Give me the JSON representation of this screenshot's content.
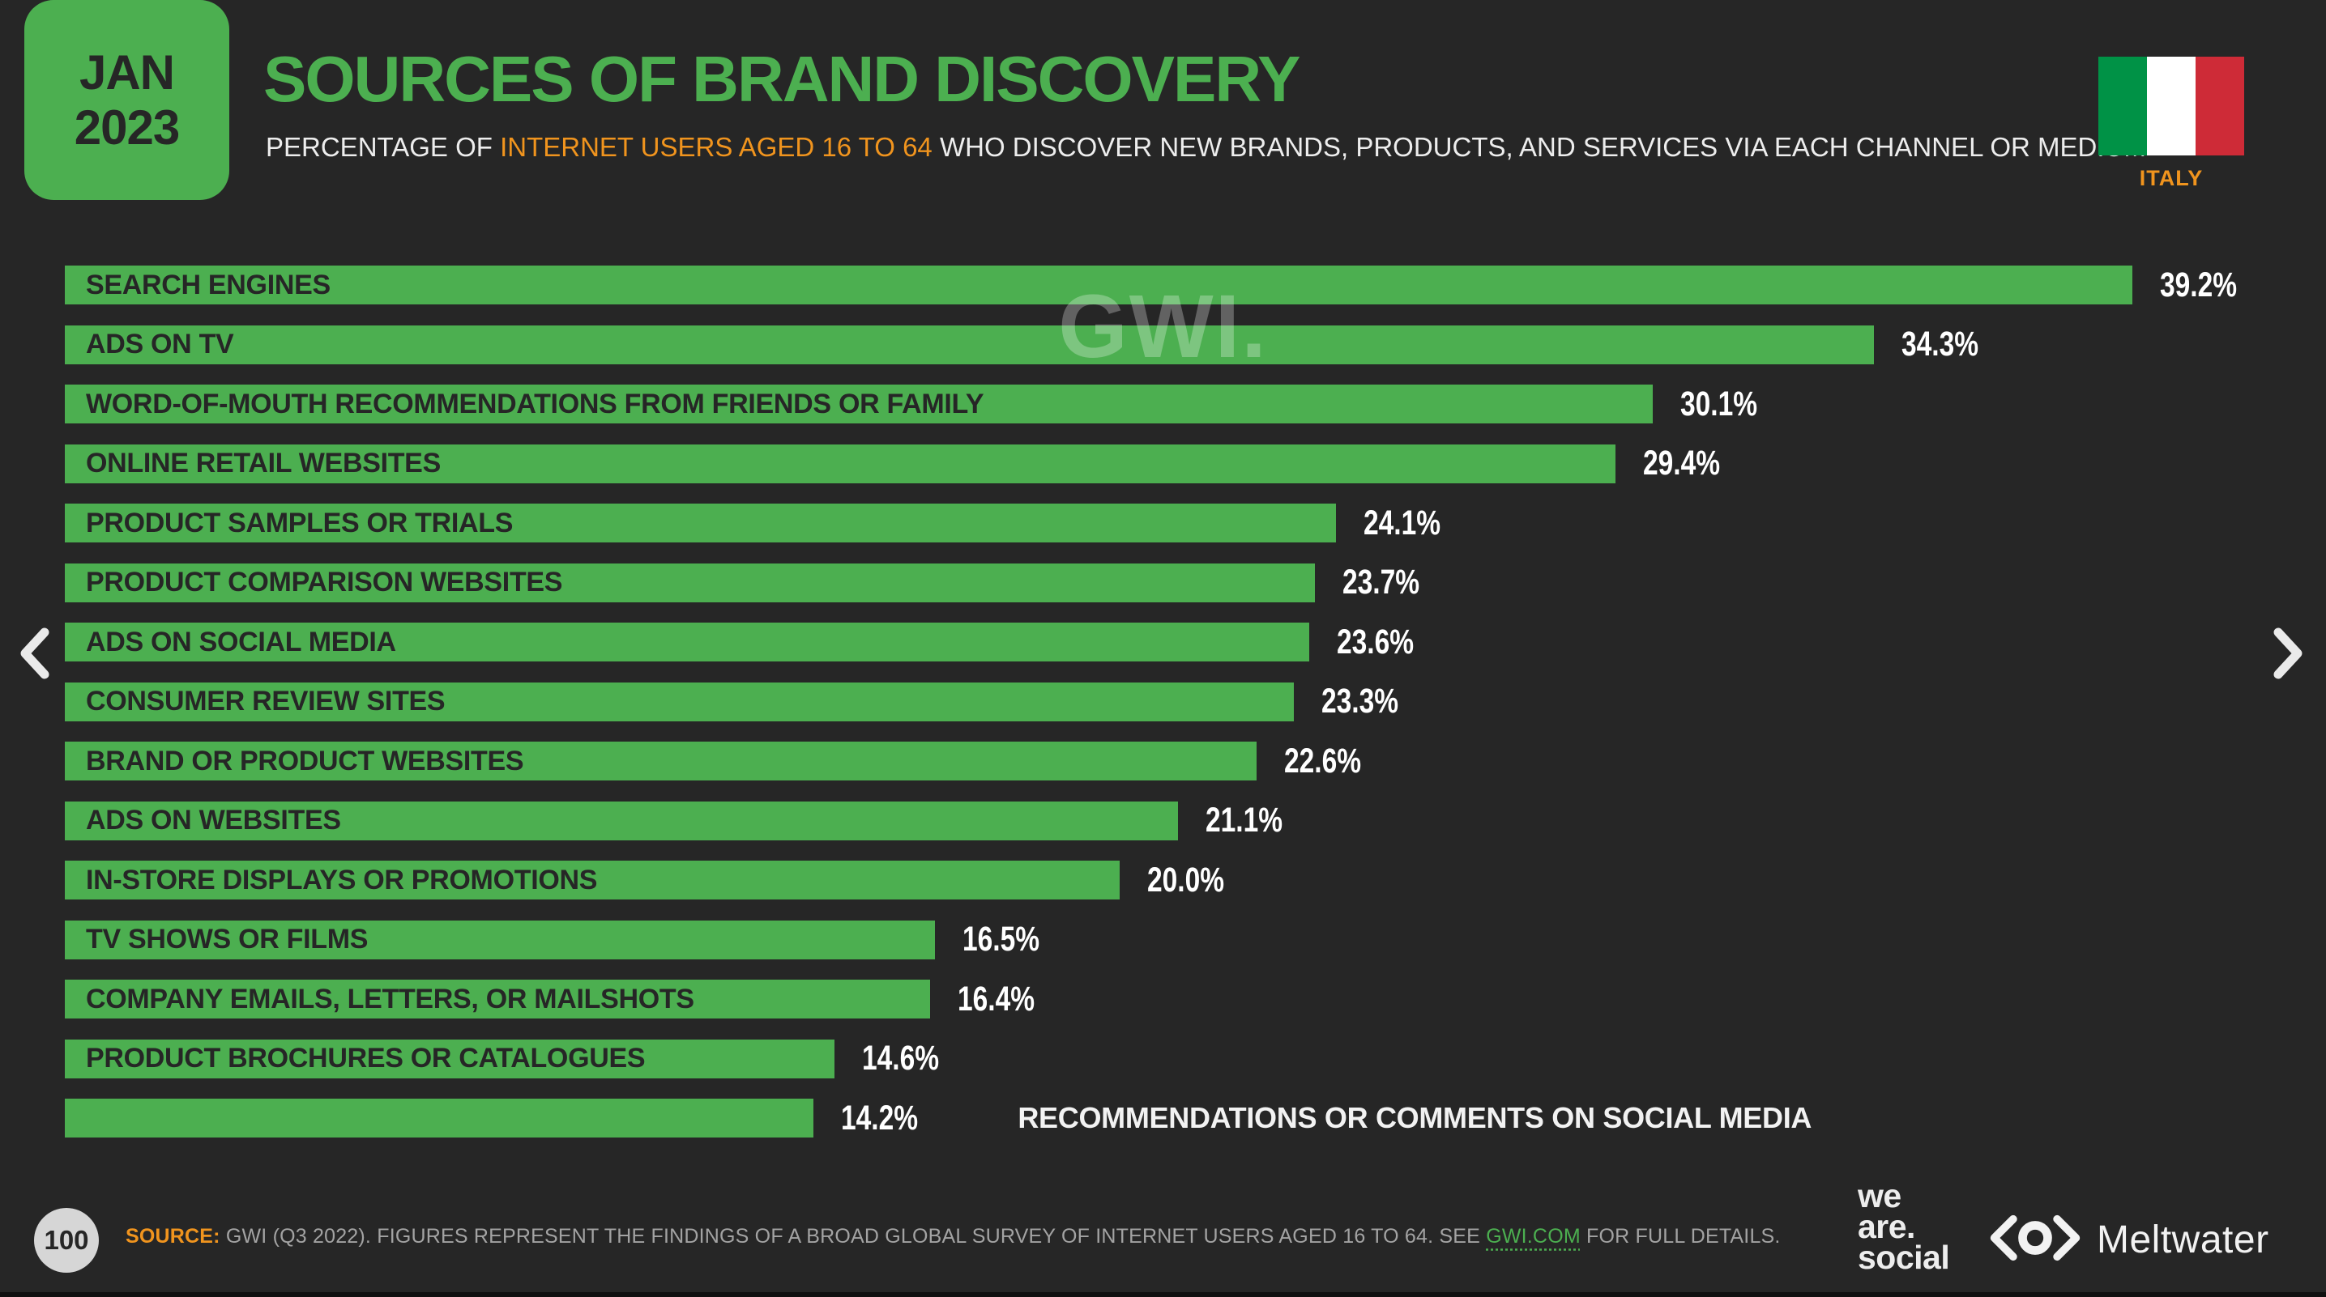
{
  "header": {
    "date_badge": {
      "month": "JAN",
      "year": "2023"
    },
    "title": "SOURCES OF BRAND DISCOVERY",
    "subtitle_prefix": "PERCENTAGE OF ",
    "subtitle_highlight": "INTERNET USERS AGED 16 TO 64",
    "subtitle_suffix": " WHO DISCOVER NEW BRANDS, PRODUCTS, AND SERVICES VIA EACH CHANNEL OR MEDIUM",
    "country_label": "ITALY"
  },
  "chart_data": {
    "type": "bar",
    "orientation": "horizontal",
    "unit": "%",
    "xlim": [
      0,
      40
    ],
    "grid": false,
    "bar_color": "#4CAF50",
    "value_label_color": "#FFFFFF",
    "outside_label_index": 14,
    "categories": [
      "SEARCH ENGINES",
      "ADS ON TV",
      "WORD-OF-MOUTH RECOMMENDATIONS FROM FRIENDS OR FAMILY",
      "ONLINE RETAIL WEBSITES",
      "PRODUCT SAMPLES OR TRIALS",
      "PRODUCT COMPARISON WEBSITES",
      "ADS ON SOCIAL MEDIA",
      "CONSUMER REVIEW SITES",
      "BRAND OR PRODUCT WEBSITES",
      "ADS ON WEBSITES",
      "IN-STORE DISPLAYS OR PROMOTIONS",
      "TV SHOWS OR FILMS",
      "COMPANY EMAILS, LETTERS, OR MAILSHOTS",
      "PRODUCT BROCHURES OR CATALOGUES",
      "RECOMMENDATIONS OR COMMENTS ON SOCIAL MEDIA"
    ],
    "values": [
      39.2,
      34.3,
      30.1,
      29.4,
      24.1,
      23.7,
      23.6,
      23.3,
      22.6,
      21.1,
      20.0,
      16.5,
      16.4,
      14.6,
      14.2
    ],
    "title": "SOURCES OF BRAND DISCOVERY"
  },
  "watermark": "GWI.",
  "footer": {
    "page_number": "100",
    "source_tag": "SOURCE:",
    "source_text_before_link": " GWI (Q3 2022). FIGURES REPRESENT THE FINDINGS OF A BROAD GLOBAL SURVEY OF INTERNET USERS AGED 16 TO 64. SEE ",
    "source_link": "GWI.COM",
    "source_text_after_link": " FOR FULL DETAILS."
  },
  "logos": {
    "we_are_social_lines": [
      "we",
      "are.",
      "social"
    ],
    "meltwater_label": "Meltwater"
  },
  "colors": {
    "background": "#262626",
    "accent_green": "#4CAF50",
    "accent_orange": "#F0941E",
    "bar_label_dark": "#262626",
    "value_white": "#FFFFFF",
    "footer_grey": "#A3A3A3",
    "page_circle": "#D6D6D6",
    "flag_green": "#009246",
    "flag_white": "#FFFFFF",
    "flag_red": "#CE2B37",
    "chevron": "#EAEAEA"
  }
}
